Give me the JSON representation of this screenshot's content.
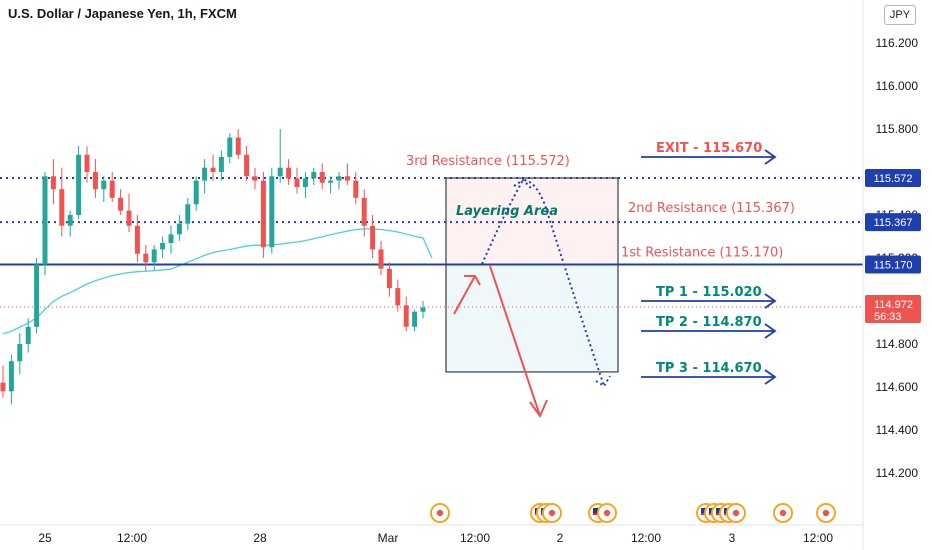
{
  "header": {
    "title": "U.S. Dollar / Japanese Yen, 1h, FXCM",
    "currency_button": "JPY"
  },
  "colors": {
    "up": "#26a69a",
    "down": "#ef5350",
    "resistance_line": "#1e40af",
    "price_line": "#ef5350",
    "ma": "#4dd0e1",
    "tp_text": "#00897b",
    "arrow_blue": "#1e40af",
    "arrow_red": "#ef5350"
  },
  "chart_data": {
    "type": "candlestick",
    "y_axis": {
      "ylim": [
        114.0,
        116.4
      ],
      "ticks": [
        "116.200",
        "116.000",
        "115.800",
        "115.400",
        "115.200",
        "114.800",
        "114.600",
        "114.400",
        "114.200"
      ]
    },
    "x_axis": {
      "ticks": [
        "25",
        "12:00",
        "28",
        "Mar",
        "12:00",
        "2",
        "12:00",
        "3",
        "12:00"
      ]
    },
    "price_badges": [
      {
        "value": "115.572",
        "style": "blue"
      },
      {
        "value": "115.367",
        "style": "blue"
      },
      {
        "value": "115.170",
        "style": "blue"
      },
      {
        "value": "114.972",
        "sub": "56:33",
        "style": "red"
      }
    ],
    "levels": [
      {
        "name": "3rd Resistance",
        "value": 115.572,
        "label": "3rd Resistance (115.572)",
        "style": "dotted"
      },
      {
        "name": "2nd Resistance",
        "value": 115.367,
        "label": "2nd Resistance (115.367)",
        "style": "dotted"
      },
      {
        "name": "1st Resistance",
        "value": 115.17,
        "label": "1st Resistance (115.170)",
        "style": "solid"
      }
    ],
    "current_price": 114.972,
    "targets": [
      {
        "label": "EXIT - 115.670",
        "value": 115.67,
        "color": "#ef5350"
      },
      {
        "label": "TP 1 - 115.020",
        "value": 115.02,
        "color": "#00897b"
      },
      {
        "label": "TP 2 - 114.870",
        "value": 114.87,
        "color": "#00897b"
      },
      {
        "label": "TP 3 - 114.670",
        "value": 114.67,
        "color": "#00897b"
      }
    ],
    "annotation": "Layering Area",
    "zones": [
      {
        "from": 115.17,
        "to": 115.572,
        "kind": "resistance"
      },
      {
        "from": 114.67,
        "to": 115.17,
        "kind": "target"
      }
    ],
    "candles": [
      [
        114.62,
        114.7,
        114.55,
        114.58
      ],
      [
        114.58,
        114.75,
        114.52,
        114.72
      ],
      [
        114.72,
        114.85,
        114.66,
        114.8
      ],
      [
        114.8,
        114.92,
        114.76,
        114.88
      ],
      [
        114.88,
        115.2,
        114.85,
        115.17
      ],
      [
        115.17,
        115.6,
        115.12,
        115.58
      ],
      [
        115.58,
        115.66,
        115.45,
        115.52
      ],
      [
        115.52,
        115.62,
        115.3,
        115.35
      ],
      [
        115.35,
        115.42,
        115.3,
        115.4
      ],
      [
        115.4,
        115.72,
        115.38,
        115.68
      ],
      [
        115.68,
        115.72,
        115.55,
        115.6
      ],
      [
        115.6,
        115.66,
        115.48,
        115.52
      ],
      [
        115.52,
        115.58,
        115.46,
        115.56
      ],
      [
        115.56,
        115.6,
        115.46,
        115.48
      ],
      [
        115.48,
        115.52,
        115.4,
        115.42
      ],
      [
        115.42,
        115.5,
        115.32,
        115.35
      ],
      [
        115.35,
        115.4,
        115.18,
        115.22
      ],
      [
        115.22,
        115.26,
        115.14,
        115.18
      ],
      [
        115.18,
        115.26,
        115.14,
        115.24
      ],
      [
        115.24,
        115.3,
        115.2,
        115.27
      ],
      [
        115.27,
        115.35,
        115.22,
        115.31
      ],
      [
        115.31,
        115.4,
        115.28,
        115.36
      ],
      [
        115.36,
        115.48,
        115.33,
        115.45
      ],
      [
        115.45,
        115.58,
        115.42,
        115.56
      ],
      [
        115.56,
        115.66,
        115.5,
        115.62
      ],
      [
        115.62,
        115.68,
        115.56,
        115.6
      ],
      [
        115.6,
        115.7,
        115.56,
        115.67
      ],
      [
        115.67,
        115.78,
        115.64,
        115.76
      ],
      [
        115.76,
        115.8,
        115.66,
        115.68
      ],
      [
        115.68,
        115.72,
        115.56,
        115.58
      ],
      [
        115.58,
        115.62,
        115.52,
        115.56
      ],
      [
        115.56,
        115.6,
        115.2,
        115.25
      ],
      [
        115.25,
        115.62,
        115.22,
        115.58
      ],
      [
        115.58,
        115.8,
        115.55,
        115.62
      ],
      [
        115.62,
        115.66,
        115.54,
        115.57
      ],
      [
        115.57,
        115.62,
        115.5,
        115.53
      ],
      [
        115.53,
        115.6,
        115.48,
        115.57
      ],
      [
        115.57,
        115.62,
        115.54,
        115.6
      ],
      [
        115.6,
        115.64,
        115.52,
        115.55
      ],
      [
        115.55,
        115.58,
        115.5,
        115.56
      ],
      [
        115.56,
        115.6,
        115.52,
        115.58
      ],
      [
        115.58,
        115.64,
        115.54,
        115.56
      ],
      [
        115.56,
        115.6,
        115.45,
        115.48
      ],
      [
        115.48,
        115.52,
        115.3,
        115.35
      ],
      [
        115.35,
        115.4,
        115.2,
        115.24
      ],
      [
        115.24,
        115.28,
        115.12,
        115.15
      ],
      [
        115.15,
        115.18,
        115.02,
        115.06
      ],
      [
        115.06,
        115.1,
        114.95,
        114.98
      ],
      [
        114.98,
        115.02,
        114.86,
        114.88
      ],
      [
        114.88,
        114.96,
        114.86,
        114.95
      ],
      [
        114.95,
        115.0,
        114.92,
        114.97
      ]
    ]
  }
}
